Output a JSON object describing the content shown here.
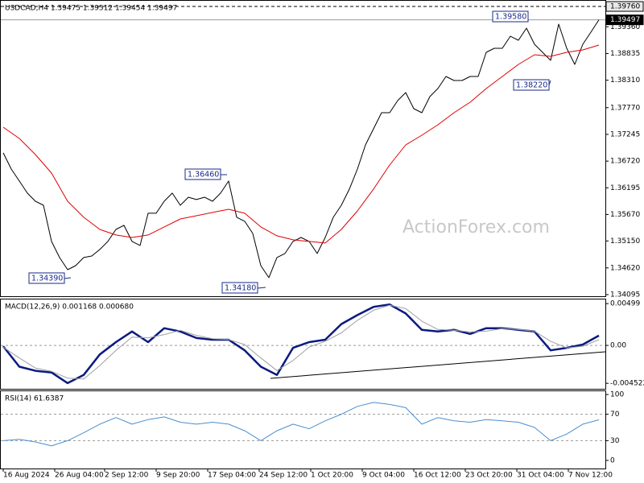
{
  "chart_data": [
    {
      "type": "line",
      "title": "USDCAD,H4 1.39475 1.39512 1.39454 1.39497",
      "watermark": "ActionForex.com",
      "xlim": [
        0,
        374
      ],
      "xticks": [
        {
          "value": 0,
          "label": "16 Aug 2024"
        },
        {
          "value": 32,
          "label": "26 Aug 04:00"
        },
        {
          "value": 63,
          "label": "2 Sep 12:00"
        },
        {
          "value": 95,
          "label": "9 Sep 20:00"
        },
        {
          "value": 127,
          "label": "17 Sep 04:00"
        },
        {
          "value": 159,
          "label": "24 Sep 12:00"
        },
        {
          "value": 191,
          "label": "1 Oct 20:00"
        },
        {
          "value": 223,
          "label": "9 Oct 04:00"
        },
        {
          "value": 255,
          "label": "16 Oct 12:00"
        },
        {
          "value": 287,
          "label": "23 Oct 20:00"
        },
        {
          "value": 319,
          "label": "31 Oct 04:00"
        },
        {
          "value": 351,
          "label": "7 Nov 12:00"
        }
      ],
      "ylim": [
        1.34063,
        1.39887
      ],
      "yticks": [
        {
          "value": 1.34095,
          "label": "1.34095"
        },
        {
          "value": 1.3462,
          "label": "1.34620"
        },
        {
          "value": 1.3515,
          "label": "1.35150"
        },
        {
          "value": 1.3567,
          "label": "1.35670"
        },
        {
          "value": 1.36195,
          "label": "1.36195"
        },
        {
          "value": 1.3672,
          "label": "1.36720"
        },
        {
          "value": 1.37245,
          "label": "1.37245"
        },
        {
          "value": 1.3777,
          "label": "1.37770"
        },
        {
          "value": 1.3831,
          "label": "1.38310"
        },
        {
          "value": 1.38835,
          "label": "1.38835"
        },
        {
          "value": 1.3936,
          "label": "1.39360"
        }
      ],
      "price_lines": [
        {
          "value": 1.3976,
          "label": "1.39760",
          "style": "dashed"
        },
        {
          "value": 1.39497,
          "label": "1.39497",
          "style": "solid"
        }
      ],
      "annotations": [
        {
          "text": "1.39580"
        },
        {
          "text": "1.38220"
        },
        {
          "text": "1.36460"
        },
        {
          "text": "1.34390"
        },
        {
          "text": "1.34180"
        }
      ],
      "series": [
        {
          "color": "#000000",
          "x": [
            0,
            5,
            10,
            15,
            20,
            25,
            30,
            35,
            40,
            45,
            50,
            55,
            60,
            65,
            70,
            75,
            80,
            85,
            90,
            95,
            100,
            105,
            110,
            115,
            120,
            125,
            130,
            135,
            140,
            145,
            150,
            155,
            160,
            165,
            170,
            175,
            180,
            185,
            190,
            195,
            200,
            205,
            210,
            215,
            220,
            225,
            230,
            235,
            240,
            245,
            250,
            255,
            260,
            265,
            270,
            275,
            280,
            285,
            290,
            295,
            300,
            305,
            310,
            315,
            320,
            325,
            330,
            335,
            340,
            345,
            350,
            355,
            360,
            365,
            370
          ],
          "values": [
            1.36881,
            1.36564,
            1.36327,
            1.3609,
            1.35931,
            1.35852,
            1.3514,
            1.34824,
            1.34586,
            1.34665,
            1.34824,
            1.34855,
            1.34982,
            1.3514,
            1.35377,
            1.35457,
            1.3514,
            1.35061,
            1.35694,
            1.35694,
            1.35931,
            1.3609,
            1.35852,
            1.3601,
            1.35963,
            1.3601,
            1.35931,
            1.3609,
            1.36327,
            1.35615,
            1.35536,
            1.35298,
            1.34665,
            1.34428,
            1.34824,
            1.34903,
            1.3514,
            1.35219,
            1.3514,
            1.34903,
            1.35219,
            1.35615,
            1.35852,
            1.36169,
            1.36564,
            1.37039,
            1.37355,
            1.37672,
            1.37672,
            1.37909,
            1.38067,
            1.37751,
            1.37672,
            1.37988,
            1.38147,
            1.38384,
            1.38305,
            1.38305,
            1.38384,
            1.38384,
            1.38859,
            1.38938,
            1.38938,
            1.39175,
            1.39096,
            1.39333,
            1.39017,
            1.38859,
            1.387,
            1.39412,
            1.38938,
            1.38621,
            1.39017,
            1.39254,
            1.39497
          ]
        },
        {
          "color": "#e00000",
          "x": [
            0,
            10,
            20,
            30,
            40,
            50,
            60,
            70,
            80,
            90,
            100,
            110,
            120,
            130,
            140,
            150,
            160,
            170,
            180,
            190,
            200,
            210,
            220,
            230,
            240,
            250,
            260,
            270,
            280,
            290,
            300,
            310,
            320,
            330,
            340,
            350,
            360,
            370
          ],
          "values": [
            1.37387,
            1.37165,
            1.36849,
            1.36485,
            1.35931,
            1.35615,
            1.35377,
            1.35267,
            1.35219,
            1.35267,
            1.35425,
            1.35583,
            1.35646,
            1.3571,
            1.35773,
            1.35694,
            1.35425,
            1.35251,
            1.35172,
            1.3514,
            1.35109,
            1.35377,
            1.35741,
            1.36169,
            1.36643,
            1.37039,
            1.37229,
            1.37434,
            1.37672,
            1.37877,
            1.38146,
            1.38384,
            1.38621,
            1.38811,
            1.38779,
            1.38859,
            1.38906,
            1.39001
          ]
        }
      ]
    },
    {
      "type": "line",
      "title": "MACD(12,26,9) 0.001168 0.000680",
      "ylim": [
        -0.00518,
        0.00558
      ],
      "yticks": [
        0.00499,
        {
          "value": 0,
          "label": "0.00"
        },
        -0.004522
      ],
      "levels": [
        0
      ],
      "series": [
        {
          "color": "#0a1a80",
          "x": [
            0,
            10,
            20,
            30,
            40,
            50,
            60,
            70,
            80,
            90,
            100,
            110,
            120,
            130,
            140,
            150,
            160,
            170,
            180,
            190,
            200,
            210,
            220,
            230,
            240,
            250,
            260,
            270,
            280,
            290,
            300,
            310,
            320,
            330,
            340,
            350,
            360,
            370
          ],
          "values": [
            -0.0001,
            -0.00254,
            -0.00303,
            -0.00323,
            -0.0045,
            -0.00352,
            -0.00108,
            0.00039,
            0.00166,
            0.00039,
            0.00205,
            0.00166,
            0.00088,
            0.00068,
            0.00068,
            -0.00059,
            -0.00254,
            -0.00352,
            -0.00029,
            0.00039,
            0.00068,
            0.00254,
            0.00362,
            0.0046,
            0.00489,
            0.00381,
            0.00186,
            0.00166,
            0.00186,
            0.00137,
            0.00205,
            0.00205,
            0.00186,
            0.00166,
            -0.00059,
            -0.00029,
            0.0001,
            0.001168
          ]
        },
        {
          "color": "#a0a0a0",
          "x": [
            0,
            10,
            20,
            30,
            40,
            50,
            60,
            70,
            80,
            90,
            100,
            110,
            120,
            130,
            140,
            150,
            160,
            170,
            180,
            190,
            200,
            210,
            220,
            230,
            240,
            250,
            260,
            270,
            280,
            290,
            300,
            310,
            320,
            330,
            340,
            350,
            360,
            370
          ],
          "values": [
            -0.0002,
            -0.0015,
            -0.0027,
            -0.0031,
            -0.0039,
            -0.004,
            -0.0024,
            -0.0006,
            0.001,
            0.0009,
            0.0013,
            0.0018,
            0.0012,
            0.0008,
            0.0007,
            0.0001,
            -0.0015,
            -0.003,
            -0.0018,
            -0.0002,
            0.0005,
            0.0015,
            0.003,
            0.0042,
            0.0048,
            0.0044,
            0.0029,
            0.0019,
            0.0018,
            0.0016,
            0.0017,
            0.002,
            0.0019,
            0.0017,
            0.0005,
            -0.0003,
            -0.0001,
            0.00068
          ]
        }
      ]
    },
    {
      "type": "line",
      "title": "RSI(14) 61.6387",
      "ylim": [
        -12.3,
        106.2
      ],
      "yticks": [
        100,
        70,
        30,
        0
      ],
      "levels": [
        30,
        70
      ],
      "series": [
        {
          "color": "#4a8fd0",
          "x": [
            0,
            10,
            20,
            30,
            40,
            50,
            60,
            70,
            80,
            90,
            100,
            110,
            120,
            130,
            140,
            150,
            160,
            170,
            180,
            190,
            200,
            210,
            220,
            230,
            240,
            250,
            260,
            270,
            280,
            290,
            300,
            310,
            320,
            330,
            340,
            350,
            360,
            370
          ],
          "values": [
            30,
            32,
            28,
            22,
            30,
            42,
            55,
            65,
            55,
            62,
            66,
            58,
            55,
            58,
            55,
            45,
            30,
            45,
            55,
            48,
            60,
            70,
            82,
            88,
            85,
            80,
            55,
            65,
            60,
            58,
            62,
            60,
            58,
            50,
            30,
            40,
            55,
            61.6387
          ]
        }
      ]
    }
  ]
}
